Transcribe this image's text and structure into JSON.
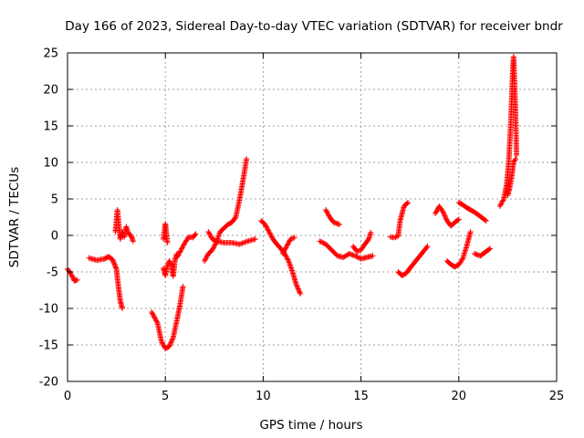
{
  "chart_data": {
    "type": "scatter",
    "title": "Day 166 of 2023, Sidereal Day-to-day VTEC variation (SDTVAR) for receiver bndr",
    "xlabel": "GPS time / hours",
    "ylabel": "SDTVAR / TECUs",
    "xlim": [
      0,
      25
    ],
    "ylim": [
      -20,
      25
    ],
    "grid": true,
    "marker": "+",
    "color": "#ff0000",
    "xticks": [
      0,
      5,
      10,
      15,
      20,
      25
    ],
    "yticks": [
      -20,
      -15,
      -10,
      -5,
      0,
      5,
      10,
      15,
      20,
      25
    ],
    "segments": [
      {
        "name": "seg-a",
        "points": [
          [
            0.0,
            -4.6
          ],
          [
            0.2,
            -5.4
          ],
          [
            0.35,
            -6.2
          ],
          [
            0.5,
            -6.1
          ]
        ]
      },
      {
        "name": "seg-b",
        "points": [
          [
            1.1,
            -3.1
          ],
          [
            1.5,
            -3.4
          ],
          [
            1.9,
            -3.2
          ],
          [
            2.1,
            -2.9
          ],
          [
            2.3,
            -3.3
          ],
          [
            2.5,
            -4.6
          ],
          [
            2.6,
            -7.0
          ],
          [
            2.7,
            -9.0
          ],
          [
            2.8,
            -10.0
          ]
        ]
      },
      {
        "name": "seg-c",
        "points": [
          [
            2.45,
            0.5
          ],
          [
            2.55,
            3.5
          ],
          [
            2.6,
            2.0
          ],
          [
            2.7,
            -0.5
          ],
          [
            2.8,
            0.5
          ],
          [
            2.9,
            -0.2
          ],
          [
            3.0,
            1.2
          ],
          [
            3.1,
            0.3
          ],
          [
            3.25,
            0.0
          ],
          [
            3.35,
            -0.8
          ]
        ]
      },
      {
        "name": "seg-d",
        "points": [
          [
            4.3,
            -10.5
          ],
          [
            4.6,
            -12.0
          ],
          [
            4.8,
            -14.5
          ],
          [
            5.0,
            -15.5
          ],
          [
            5.2,
            -15.2
          ],
          [
            5.4,
            -14.0
          ],
          [
            5.6,
            -11.5
          ],
          [
            5.75,
            -9.5
          ],
          [
            5.9,
            -7.0
          ]
        ]
      },
      {
        "name": "seg-e",
        "points": [
          [
            4.9,
            -4.5
          ],
          [
            5.0,
            -5.5
          ],
          [
            5.1,
            -4.2
          ],
          [
            5.2,
            -3.5
          ],
          [
            5.3,
            -4.0
          ],
          [
            5.4,
            -5.6
          ],
          [
            5.5,
            -3.2
          ],
          [
            5.6,
            -2.5
          ]
        ]
      },
      {
        "name": "seg-f",
        "points": [
          [
            4.9,
            -0.5
          ],
          [
            5.0,
            1.6
          ],
          [
            5.1,
            -1.0
          ]
        ]
      },
      {
        "name": "seg-g",
        "points": [
          [
            5.6,
            -3.0
          ],
          [
            5.8,
            -2.0
          ],
          [
            6.0,
            -1.0
          ],
          [
            6.2,
            -0.2
          ],
          [
            6.4,
            -0.3
          ],
          [
            6.55,
            0.2
          ]
        ]
      },
      {
        "name": "seg-h",
        "points": [
          [
            7.0,
            -3.5
          ],
          [
            7.2,
            -2.5
          ],
          [
            7.4,
            -2.0
          ],
          [
            7.6,
            -1.0
          ],
          [
            7.8,
            0.5
          ],
          [
            8.0,
            1.0
          ],
          [
            8.2,
            1.5
          ],
          [
            8.4,
            1.8
          ],
          [
            8.6,
            2.5
          ],
          [
            8.8,
            5.0
          ],
          [
            9.0,
            8.0
          ],
          [
            9.15,
            10.5
          ]
        ]
      },
      {
        "name": "seg-i",
        "points": [
          [
            7.2,
            0.5
          ],
          [
            7.4,
            -0.5
          ],
          [
            7.6,
            -0.8
          ],
          [
            8.0,
            -1.0
          ],
          [
            8.4,
            -1.0
          ],
          [
            8.8,
            -1.2
          ],
          [
            9.2,
            -0.8
          ],
          [
            9.6,
            -0.5
          ]
        ]
      },
      {
        "name": "seg-j",
        "points": [
          [
            9.9,
            2.0
          ],
          [
            10.1,
            1.5
          ],
          [
            10.3,
            0.5
          ],
          [
            10.5,
            -0.5
          ],
          [
            10.7,
            -1.2
          ],
          [
            10.9,
            -1.8
          ],
          [
            11.1,
            -2.5
          ],
          [
            11.3,
            -3.5
          ],
          [
            11.5,
            -5.0
          ],
          [
            11.7,
            -6.8
          ],
          [
            11.9,
            -8.0
          ]
        ]
      },
      {
        "name": "seg-k",
        "points": [
          [
            11.0,
            -2.5
          ],
          [
            11.2,
            -1.5
          ],
          [
            11.4,
            -0.5
          ],
          [
            11.6,
            -0.3
          ]
        ]
      },
      {
        "name": "seg-l",
        "points": [
          [
            12.9,
            -0.8
          ],
          [
            13.2,
            -1.2
          ],
          [
            13.5,
            -2.0
          ],
          [
            13.8,
            -2.8
          ],
          [
            14.1,
            -3.0
          ],
          [
            14.4,
            -2.5
          ],
          [
            14.7,
            -2.8
          ],
          [
            15.0,
            -3.2
          ],
          [
            15.3,
            -3.0
          ],
          [
            15.6,
            -2.8
          ]
        ]
      },
      {
        "name": "seg-m",
        "points": [
          [
            13.2,
            3.5
          ],
          [
            13.4,
            2.5
          ],
          [
            13.6,
            1.8
          ],
          [
            13.9,
            1.5
          ]
        ]
      },
      {
        "name": "seg-n",
        "points": [
          [
            14.6,
            -1.5
          ],
          [
            14.8,
            -2.2
          ],
          [
            15.0,
            -2.0
          ],
          [
            15.2,
            -1.2
          ],
          [
            15.4,
            -0.5
          ],
          [
            15.5,
            0.4
          ]
        ]
      },
      {
        "name": "seg-o",
        "points": [
          [
            16.5,
            -0.2
          ],
          [
            16.7,
            -0.3
          ],
          [
            16.9,
            -0.1
          ],
          [
            17.0,
            2.0
          ],
          [
            17.2,
            4.0
          ],
          [
            17.4,
            4.5
          ]
        ]
      },
      {
        "name": "seg-p",
        "points": [
          [
            16.9,
            -5.0
          ],
          [
            17.1,
            -5.5
          ],
          [
            17.3,
            -5.2
          ],
          [
            17.5,
            -4.5
          ],
          [
            17.8,
            -3.5
          ],
          [
            18.1,
            -2.5
          ],
          [
            18.4,
            -1.5
          ]
        ]
      },
      {
        "name": "seg-q",
        "points": [
          [
            18.8,
            3.0
          ],
          [
            19.0,
            4.0
          ],
          [
            19.2,
            3.2
          ],
          [
            19.4,
            2.0
          ],
          [
            19.6,
            1.3
          ],
          [
            19.8,
            1.8
          ],
          [
            20.0,
            2.2
          ]
        ]
      },
      {
        "name": "seg-r",
        "points": [
          [
            19.4,
            -3.5
          ],
          [
            19.6,
            -4.0
          ],
          [
            19.8,
            -4.3
          ],
          [
            20.0,
            -4.0
          ],
          [
            20.2,
            -3.2
          ],
          [
            20.4,
            -1.5
          ],
          [
            20.6,
            0.5
          ]
        ]
      },
      {
        "name": "seg-s",
        "points": [
          [
            20.0,
            4.5
          ],
          [
            20.2,
            4.2
          ],
          [
            20.4,
            3.8
          ],
          [
            20.6,
            3.5
          ],
          [
            20.8,
            3.2
          ],
          [
            21.0,
            2.8
          ],
          [
            21.2,
            2.4
          ],
          [
            21.4,
            2.0
          ]
        ]
      },
      {
        "name": "seg-t",
        "points": [
          [
            20.8,
            -2.5
          ],
          [
            21.1,
            -2.8
          ],
          [
            21.4,
            -2.2
          ],
          [
            21.6,
            -1.8
          ]
        ]
      },
      {
        "name": "seg-u",
        "points": [
          [
            22.1,
            4.0
          ],
          [
            22.3,
            5.0
          ],
          [
            22.45,
            7.0
          ],
          [
            22.55,
            10.0
          ],
          [
            22.65,
            15.0
          ],
          [
            22.75,
            22.0
          ],
          [
            22.8,
            24.5
          ],
          [
            22.85,
            21.0
          ],
          [
            22.9,
            17.0
          ],
          [
            22.95,
            11.0
          ]
        ]
      },
      {
        "name": "seg-v",
        "points": [
          [
            22.5,
            5.5
          ],
          [
            22.6,
            6.5
          ],
          [
            22.7,
            8.0
          ],
          [
            22.8,
            10.0
          ],
          [
            22.9,
            10.5
          ]
        ]
      }
    ]
  }
}
